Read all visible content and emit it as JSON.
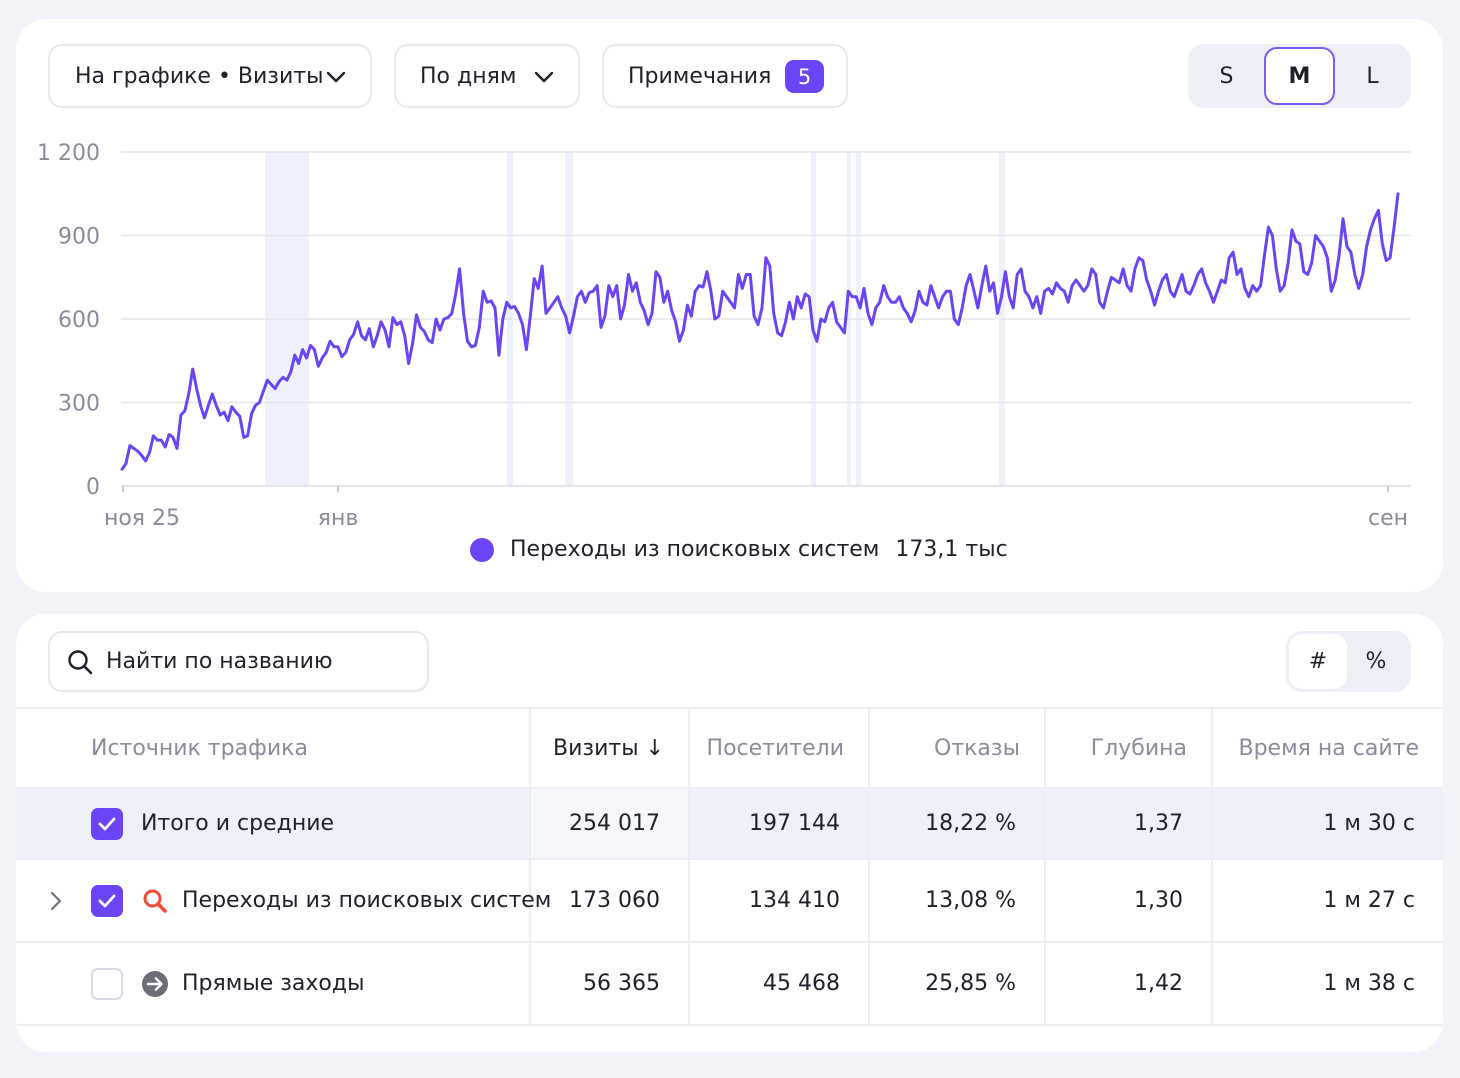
{
  "toolbar": {
    "metric_dropdown": "На графике • Визиты",
    "period_dropdown": "По дням",
    "notes_label": "Примечания",
    "notes_count": "5",
    "size_options": [
      "S",
      "M",
      "L"
    ],
    "size_selected": "M"
  },
  "colors": {
    "accent": "#6b44f5",
    "grid": "#e4e6ec",
    "highlight": "#eef0fb"
  },
  "chart_data": {
    "type": "line",
    "y_ticks": [
      "1 200",
      "900",
      "600",
      "300",
      "0"
    ],
    "x_ticks": [
      "ноя 25",
      "янв",
      "сен"
    ],
    "ylim": [
      0,
      1200
    ],
    "legend_position": "bottom",
    "series": [
      {
        "name": "Переходы из поисковых систем",
        "total": "173,1 тыс",
        "color": "#6b44f5",
        "values": [
          60,
          80,
          145,
          135,
          125,
          110,
          90,
          120,
          180,
          165,
          165,
          140,
          185,
          175,
          135,
          255,
          270,
          330,
          420,
          350,
          290,
          245,
          290,
          330,
          290,
          255,
          265,
          235,
          285,
          265,
          250,
          175,
          180,
          260,
          290,
          300,
          340,
          380,
          365,
          350,
          375,
          390,
          380,
          410,
          470,
          440,
          490,
          460,
          505,
          490,
          430,
          460,
          480,
          520,
          500,
          500,
          465,
          480,
          525,
          545,
          590,
          540,
          525,
          565,
          500,
          540,
          590,
          560,
          500,
          605,
          580,
          590,
          540,
          440,
          510,
          615,
          570,
          555,
          525,
          515,
          600,
          560,
          600,
          605,
          620,
          690,
          780,
          620,
          520,
          500,
          505,
          570,
          700,
          660,
          665,
          640,
          470,
          600,
          660,
          640,
          645,
          620,
          580,
          490,
          610,
          745,
          710,
          790,
          620,
          640,
          660,
          680,
          640,
          610,
          550,
          610,
          680,
          700,
          660,
          695,
          700,
          720,
          570,
          610,
          720,
          680,
          720,
          600,
          650,
          760,
          700,
          730,
          660,
          630,
          580,
          620,
          770,
          750,
          660,
          700,
          630,
          590,
          520,
          560,
          650,
          610,
          700,
          720,
          715,
          770,
          700,
          600,
          610,
          700,
          680,
          660,
          640,
          760,
          710,
          760,
          760,
          610,
          580,
          640,
          820,
          790,
          620,
          550,
          540,
          590,
          660,
          600,
          680,
          640,
          690,
          680,
          560,
          520,
          600,
          590,
          640,
          660,
          590,
          570,
          550,
          700,
          680,
          680,
          640,
          710,
          620,
          580,
          640,
          660,
          720,
          680,
          660,
          660,
          680,
          640,
          620,
          590,
          630,
          700,
          660,
          650,
          720,
          680,
          640,
          680,
          700,
          700,
          600,
          580,
          640,
          720,
          760,
          700,
          640,
          720,
          790,
          700,
          730,
          620,
          680,
          770,
          680,
          640,
          760,
          780,
          700,
          680,
          640,
          680,
          620,
          700,
          710,
          690,
          730,
          710,
          700,
          660,
          720,
          740,
          720,
          700,
          720,
          780,
          760,
          660,
          640,
          700,
          750,
          740,
          730,
          780,
          720,
          700,
          780,
          820,
          810,
          740,
          700,
          650,
          700,
          740,
          760,
          700,
          680,
          720,
          760,
          700,
          690,
          720,
          760,
          780,
          730,
          700,
          660,
          700,
          740,
          730,
          820,
          840,
          760,
          780,
          710,
          680,
          720,
          700,
          720,
          830,
          930,
          900,
          780,
          700,
          720,
          800,
          920,
          880,
          870,
          770,
          760,
          800,
          900,
          880,
          860,
          820,
          700,
          740,
          830,
          960,
          860,
          840,
          760,
          710,
          760,
          860,
          920,
          960,
          990,
          870,
          810,
          820,
          930,
          1050
        ]
      }
    ]
  },
  "table": {
    "search_placeholder": "Найти по названию",
    "unit_options": [
      "#",
      "%"
    ],
    "unit_selected": "#",
    "columns": [
      "Источник трафика",
      "Визиты ↓",
      "Посетители",
      "Отказы",
      "Глубина",
      "Время на сайте"
    ],
    "rows": [
      {
        "label": "Итого и средние",
        "checked": true,
        "icon": "",
        "values": [
          "254 017",
          "197 144",
          "18,22 %",
          "1,37",
          "1 м 30 с"
        ]
      },
      {
        "label": "Переходы из поисковых систем",
        "checked": true,
        "icon": "search-engine-icon",
        "values": [
          "173 060",
          "134 410",
          "13,08 %",
          "1,30",
          "1 м 27 с"
        ]
      },
      {
        "label": "Прямые заходы",
        "checked": false,
        "icon": "direct-visit-arrow-icon",
        "values": [
          "56 365",
          "45 468",
          "25,85 %",
          "1,42",
          "1 м 38 с"
        ]
      }
    ]
  }
}
